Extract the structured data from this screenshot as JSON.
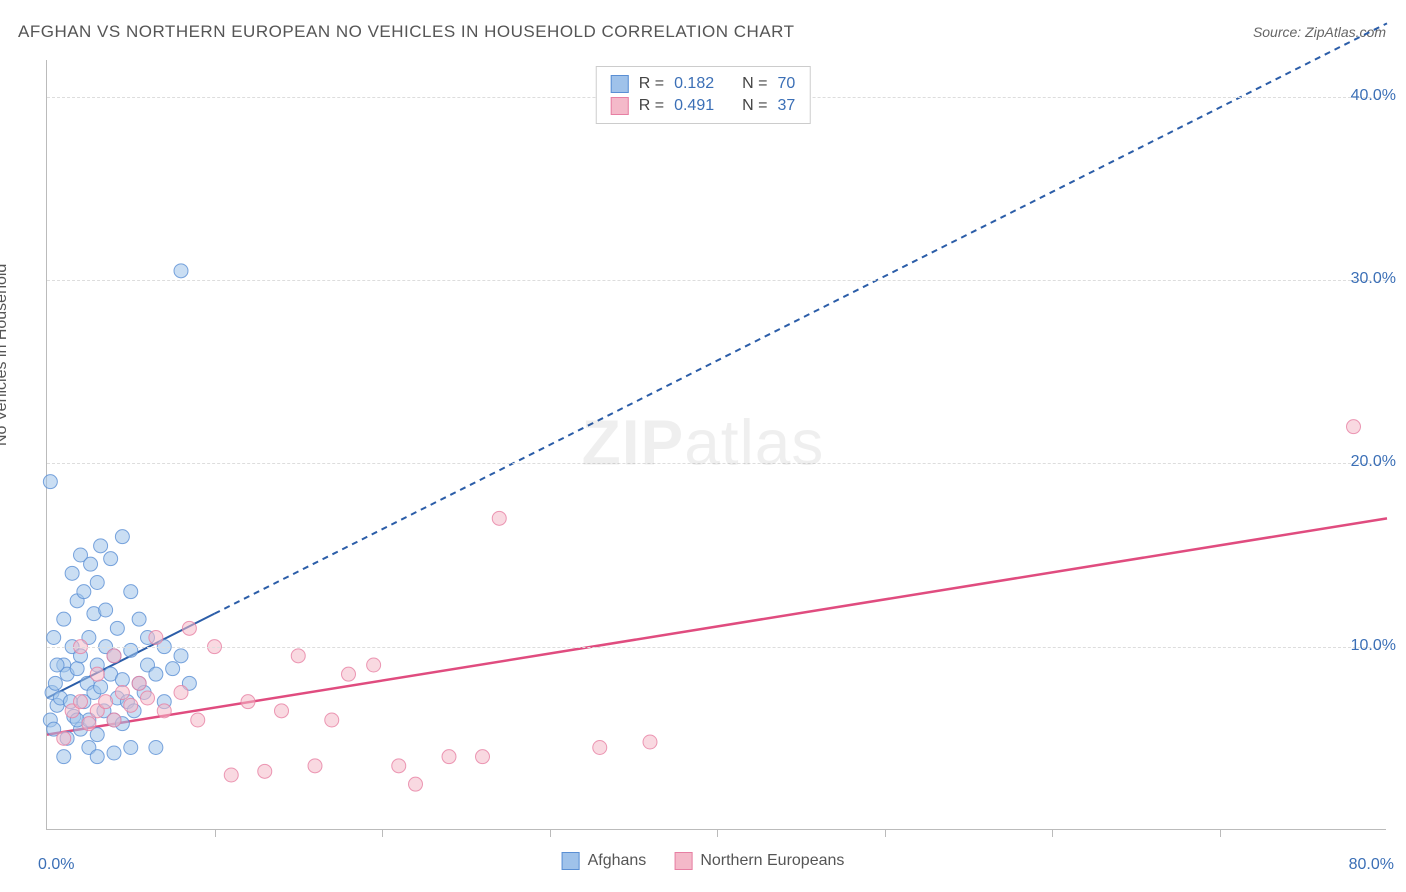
{
  "title": "AFGHAN VS NORTHERN EUROPEAN NO VEHICLES IN HOUSEHOLD CORRELATION CHART",
  "source": "Source: ZipAtlas.com",
  "ylabel": "No Vehicles in Household",
  "watermark_bold": "ZIP",
  "watermark_light": "atlas",
  "chart": {
    "type": "scatter",
    "xlim": [
      0,
      80
    ],
    "ylim": [
      0,
      42
    ],
    "x_tick_start": "0.0%",
    "x_tick_end": "80.0%",
    "x_minor_ticks": [
      10,
      20,
      30,
      40,
      50,
      60,
      70
    ],
    "y_ticks": [
      10,
      20,
      30,
      40
    ],
    "y_tick_labels": [
      "10.0%",
      "20.0%",
      "30.0%",
      "40.0%"
    ],
    "grid_color": "#dddddd",
    "axis_color": "#bbbbbb",
    "background_color": "#ffffff",
    "marker_radius": 7,
    "marker_opacity": 0.55,
    "series": [
      {
        "name": "Afghans",
        "color_fill": "#9fc2ea",
        "color_stroke": "#5a8fd4",
        "R": "0.182",
        "N": "70",
        "trend": {
          "x1": 0,
          "y1": 7.2,
          "x2_solid": 10,
          "y2_solid": 11.8,
          "x2_dash": 80,
          "y2_dash": 44,
          "color": "#2b5da8",
          "width": 2,
          "dash": "6,5"
        },
        "points": [
          [
            0.2,
            6.0
          ],
          [
            0.3,
            7.5
          ],
          [
            0.4,
            5.5
          ],
          [
            0.5,
            8.0
          ],
          [
            0.6,
            6.8
          ],
          [
            0.8,
            7.2
          ],
          [
            1.0,
            9.0
          ],
          [
            1.0,
            11.5
          ],
          [
            1.2,
            5.0
          ],
          [
            1.2,
            8.5
          ],
          [
            1.4,
            7.0
          ],
          [
            1.5,
            10.0
          ],
          [
            1.5,
            14.0
          ],
          [
            1.6,
            6.2
          ],
          [
            1.8,
            8.8
          ],
          [
            1.8,
            12.5
          ],
          [
            2.0,
            5.5
          ],
          [
            2.0,
            9.5
          ],
          [
            2.0,
            15.0
          ],
          [
            2.2,
            7.0
          ],
          [
            2.2,
            13.0
          ],
          [
            2.4,
            8.0
          ],
          [
            2.5,
            6.0
          ],
          [
            2.5,
            10.5
          ],
          [
            2.6,
            14.5
          ],
          [
            2.8,
            7.5
          ],
          [
            2.8,
            11.8
          ],
          [
            3.0,
            5.2
          ],
          [
            3.0,
            9.0
          ],
          [
            3.0,
            13.5
          ],
          [
            3.2,
            7.8
          ],
          [
            3.2,
            15.5
          ],
          [
            3.4,
            6.5
          ],
          [
            3.5,
            10.0
          ],
          [
            3.5,
            12.0
          ],
          [
            3.8,
            8.5
          ],
          [
            3.8,
            14.8
          ],
          [
            4.0,
            6.0
          ],
          [
            4.0,
            9.5
          ],
          [
            4.2,
            7.2
          ],
          [
            4.2,
            11.0
          ],
          [
            4.5,
            5.8
          ],
          [
            4.5,
            8.2
          ],
          [
            4.5,
            16.0
          ],
          [
            4.8,
            7.0
          ],
          [
            5.0,
            9.8
          ],
          [
            5.0,
            13.0
          ],
          [
            5.2,
            6.5
          ],
          [
            5.5,
            8.0
          ],
          [
            5.5,
            11.5
          ],
          [
            5.8,
            7.5
          ],
          [
            6.0,
            9.0
          ],
          [
            6.0,
            10.5
          ],
          [
            6.5,
            8.5
          ],
          [
            6.5,
            4.5
          ],
          [
            7.0,
            7.0
          ],
          [
            7.0,
            10.0
          ],
          [
            7.5,
            8.8
          ],
          [
            8.0,
            9.5
          ],
          [
            8.5,
            8.0
          ],
          [
            0.2,
            19.0
          ],
          [
            1.0,
            4.0
          ],
          [
            2.5,
            4.5
          ],
          [
            3.0,
            4.0
          ],
          [
            4.0,
            4.2
          ],
          [
            5.0,
            4.5
          ],
          [
            0.4,
            10.5
          ],
          [
            0.6,
            9.0
          ],
          [
            1.8,
            6.0
          ],
          [
            8.0,
            30.5
          ]
        ]
      },
      {
        "name": "Northern Europeans",
        "color_fill": "#f4b9c9",
        "color_stroke": "#e77fa3",
        "R": "0.491",
        "N": "37",
        "trend": {
          "x1": 0,
          "y1": 5.2,
          "x2_solid": 80,
          "y2_solid": 17.0,
          "color": "#e04c7f",
          "width": 2.5
        },
        "points": [
          [
            1.0,
            5.0
          ],
          [
            1.5,
            6.5
          ],
          [
            2.0,
            7.0
          ],
          [
            2.0,
            10.0
          ],
          [
            2.5,
            5.8
          ],
          [
            3.0,
            6.5
          ],
          [
            3.0,
            8.5
          ],
          [
            3.5,
            7.0
          ],
          [
            4.0,
            6.0
          ],
          [
            4.0,
            9.5
          ],
          [
            4.5,
            7.5
          ],
          [
            5.0,
            6.8
          ],
          [
            5.5,
            8.0
          ],
          [
            6.0,
            7.2
          ],
          [
            6.5,
            10.5
          ],
          [
            7.0,
            6.5
          ],
          [
            8.0,
            7.5
          ],
          [
            8.5,
            11.0
          ],
          [
            9.0,
            6.0
          ],
          [
            10.0,
            10.0
          ],
          [
            11.0,
            3.0
          ],
          [
            12.0,
            7.0
          ],
          [
            13.0,
            3.2
          ],
          [
            14.0,
            6.5
          ],
          [
            15.0,
            9.5
          ],
          [
            16.0,
            3.5
          ],
          [
            17.0,
            6.0
          ],
          [
            18.0,
            8.5
          ],
          [
            19.5,
            9.0
          ],
          [
            21.0,
            3.5
          ],
          [
            22.0,
            2.5
          ],
          [
            24.0,
            4.0
          ],
          [
            26.0,
            4.0
          ],
          [
            27.0,
            17.0
          ],
          [
            33.0,
            4.5
          ],
          [
            36.0,
            4.8
          ],
          [
            78.0,
            22.0
          ]
        ]
      }
    ],
    "legend_top": {
      "rows": [
        {
          "swatch_fill": "#9fc2ea",
          "swatch_stroke": "#5a8fd4",
          "r_label": "R =",
          "r_val": "0.182",
          "n_label": "N =",
          "n_val": "70"
        },
        {
          "swatch_fill": "#f4b9c9",
          "swatch_stroke": "#e77fa3",
          "r_label": "R =",
          "r_val": "0.491",
          "n_label": "N =",
          "n_val": "37"
        }
      ]
    },
    "legend_bottom": {
      "items": [
        {
          "swatch_fill": "#9fc2ea",
          "swatch_stroke": "#5a8fd4",
          "label": "Afghans"
        },
        {
          "swatch_fill": "#f4b9c9",
          "swatch_stroke": "#e77fa3",
          "label": "Northern Europeans"
        }
      ]
    }
  }
}
